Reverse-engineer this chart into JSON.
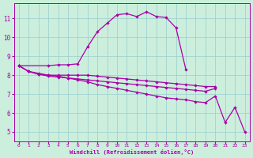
{
  "background_color": "#cceedd",
  "grid_color": "#99cccc",
  "line_color": "#aa00aa",
  "xlabel": "Windchill (Refroidissement éolien,°C)",
  "xlim": [
    -0.5,
    23.5
  ],
  "ylim": [
    4.5,
    11.8
  ],
  "yticks": [
    5,
    6,
    7,
    8,
    9,
    10,
    11
  ],
  "xticks": [
    0,
    1,
    2,
    3,
    4,
    5,
    6,
    7,
    8,
    9,
    10,
    11,
    12,
    13,
    14,
    15,
    16,
    17,
    18,
    19,
    20,
    21,
    22,
    23
  ],
  "lw": 0.9,
  "ms": 2.2,
  "series": [
    {
      "x": [
        0,
        3,
        4,
        5,
        6,
        7,
        8,
        9,
        10,
        11,
        12,
        13,
        14,
        15,
        16,
        17
      ],
      "y": [
        8.5,
        8.5,
        8.55,
        8.55,
        8.6,
        9.5,
        10.3,
        10.75,
        11.2,
        11.25,
        11.1,
        11.35,
        11.1,
        11.05,
        10.5,
        8.3
      ]
    },
    {
      "x": [
        0,
        1,
        2,
        3,
        4,
        5,
        6,
        7,
        8,
        9,
        10,
        11,
        12,
        13,
        14,
        15,
        16,
        17,
        18,
        19,
        20,
        21,
        22,
        23
      ],
      "y": [
        8.5,
        8.2,
        8.05,
        8.0,
        7.95,
        7.85,
        7.75,
        7.65,
        7.5,
        7.4,
        7.3,
        7.2,
        7.1,
        7.0,
        6.9,
        6.8,
        6.75,
        6.7,
        6.6,
        6.55,
        6.9,
        5.5,
        6.3,
        5.0
      ]
    },
    {
      "x": [
        0,
        1,
        2,
        3,
        4,
        5,
        6,
        7,
        8,
        9,
        10,
        11,
        12,
        13,
        14,
        15,
        16,
        17,
        18,
        19,
        20
      ],
      "y": [
        8.5,
        8.2,
        8.1,
        8.0,
        8.0,
        8.0,
        8.0,
        8.0,
        7.95,
        7.9,
        7.85,
        7.8,
        7.75,
        7.7,
        7.65,
        7.6,
        7.55,
        7.5,
        7.45,
        7.4,
        7.4
      ]
    },
    {
      "x": [
        0,
        1,
        2,
        3,
        4,
        5,
        6,
        7,
        8,
        9,
        10,
        11,
        12,
        13,
        14,
        15,
        16,
        17,
        18,
        19,
        20
      ],
      "y": [
        8.5,
        8.2,
        8.05,
        7.95,
        7.9,
        7.85,
        7.8,
        7.75,
        7.7,
        7.65,
        7.6,
        7.55,
        7.5,
        7.45,
        7.4,
        7.35,
        7.3,
        7.25,
        7.2,
        7.15,
        7.3
      ]
    }
  ]
}
